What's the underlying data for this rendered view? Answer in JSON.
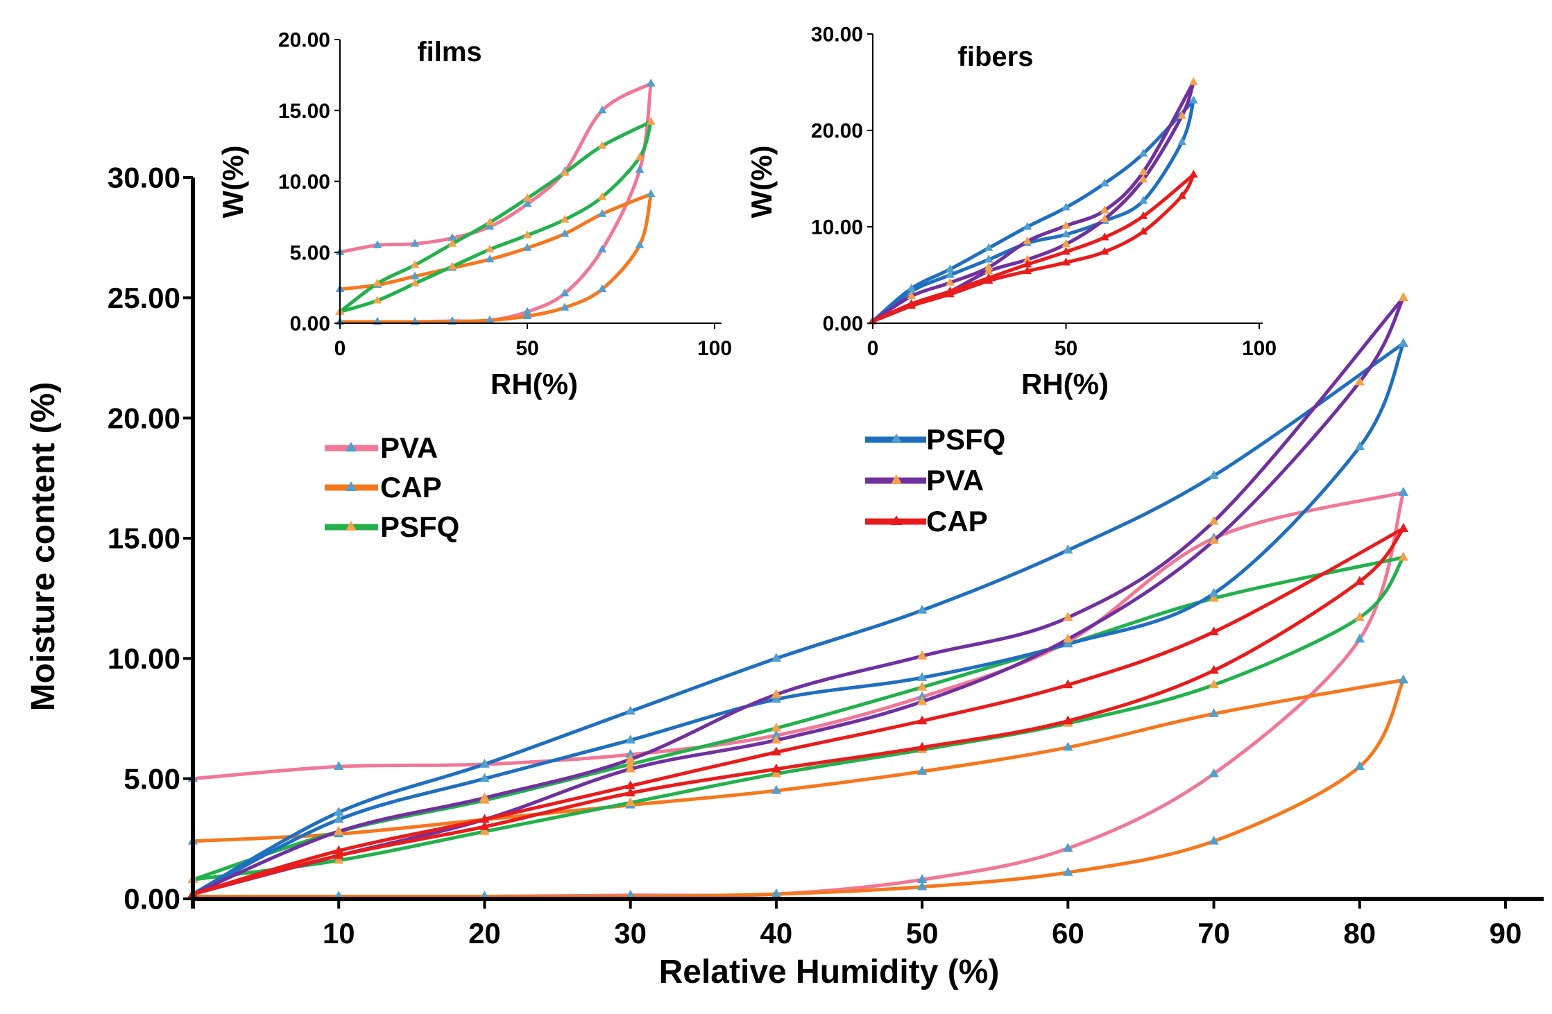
{
  "chart_data": [
    {
      "id": "main",
      "type": "line",
      "title": "",
      "xlabel": "Relative Humidity (%)",
      "ylabel": "Moisture content (%)",
      "xlim": [
        0,
        90
      ],
      "ylim": [
        0,
        30
      ],
      "xticks": [
        "10",
        "20",
        "30",
        "40",
        "50",
        "60",
        "70",
        "80",
        "90"
      ],
      "yticks": [
        "0.00",
        "5.00",
        "10.00",
        "15.00",
        "20.00",
        "25.00",
        "30.00"
      ],
      "grid": false,
      "legend": {
        "films": [
          "PVA",
          "CAP",
          "PSFQ"
        ],
        "fibers": [
          "PSFQ",
          "PVA",
          "CAP"
        ]
      },
      "series": [
        {
          "name": "PVA (film) sorption",
          "group": "films",
          "color": "#f07896",
          "x": [
            0,
            10,
            20,
            30,
            40,
            50,
            60,
            70,
            80,
            83
          ],
          "y": [
            0.1,
            0.1,
            0.1,
            0.15,
            0.2,
            0.8,
            2.1,
            5.2,
            10.8,
            16.9
          ]
        },
        {
          "name": "PVA (film) desorption",
          "group": "films",
          "color": "#f07896",
          "x": [
            83,
            70,
            60,
            50,
            40,
            30,
            20,
            10,
            0
          ],
          "y": [
            16.9,
            15.0,
            10.7,
            8.4,
            6.8,
            6.0,
            5.6,
            5.5,
            5.0
          ]
        },
        {
          "name": "CAP (film) sorption",
          "group": "films",
          "color": "#f5781e",
          "x": [
            0,
            10,
            20,
            30,
            40,
            50,
            60,
            70,
            80,
            83
          ],
          "y": [
            0.1,
            0.1,
            0.1,
            0.1,
            0.2,
            0.5,
            1.1,
            2.4,
            5.5,
            9.1
          ]
        },
        {
          "name": "CAP (film) desorption",
          "group": "films",
          "color": "#f5781e",
          "x": [
            83,
            70,
            60,
            50,
            40,
            30,
            20,
            10,
            0
          ],
          "y": [
            9.1,
            7.7,
            6.3,
            5.3,
            4.5,
            3.9,
            3.3,
            2.7,
            2.4
          ]
        },
        {
          "name": "PSFQ (film) sorption",
          "group": "films",
          "color": "#22b14c",
          "x": [
            0,
            10,
            20,
            30,
            40,
            50,
            60,
            70,
            80,
            83
          ],
          "y": [
            0.8,
            1.6,
            2.8,
            4.0,
            5.2,
            6.2,
            7.3,
            8.9,
            11.7,
            14.2
          ]
        },
        {
          "name": "PSFQ (film) desorption",
          "group": "films",
          "color": "#22b14c",
          "x": [
            83,
            70,
            60,
            50,
            40,
            30,
            20,
            10,
            0
          ],
          "y": [
            14.2,
            12.5,
            10.6,
            8.8,
            7.1,
            5.6,
            4.1,
            2.8,
            0.8
          ]
        },
        {
          "name": "PSFQ (fiber) sorption",
          "group": "fibers",
          "color": "#1f6fc0",
          "x": [
            0,
            10,
            20,
            30,
            40,
            50,
            60,
            70,
            80,
            83
          ],
          "y": [
            0.2,
            3.3,
            5.0,
            6.6,
            8.3,
            9.2,
            10.6,
            12.7,
            18.8,
            23.1
          ]
        },
        {
          "name": "PSFQ (fiber) desorption",
          "group": "fibers",
          "color": "#1f6fc0",
          "x": [
            83,
            70,
            60,
            50,
            40,
            30,
            20,
            10,
            0
          ],
          "y": [
            23.1,
            17.6,
            14.5,
            12.0,
            10.0,
            7.8,
            5.6,
            3.6,
            0.2
          ]
        },
        {
          "name": "PVA (fiber) sorption",
          "group": "fibers",
          "color": "#7030a0",
          "x": [
            0,
            10,
            20,
            30,
            40,
            50,
            60,
            70,
            80,
            83
          ],
          "y": [
            0.2,
            1.8,
            3.3,
            5.4,
            6.6,
            8.2,
            10.8,
            14.9,
            21.5,
            25.0
          ]
        },
        {
          "name": "PVA (fiber) desorption",
          "group": "fibers",
          "color": "#7030a0",
          "x": [
            83,
            70,
            60,
            50,
            40,
            30,
            20,
            10,
            0
          ],
          "y": [
            25.0,
            15.7,
            11.7,
            10.1,
            8.5,
            5.8,
            4.2,
            2.8,
            0.2
          ]
        },
        {
          "name": "CAP (fiber) sorption",
          "group": "fibers",
          "color": "#e81c1c",
          "x": [
            0,
            10,
            20,
            30,
            40,
            50,
            60,
            70,
            80,
            83
          ],
          "y": [
            0.2,
            1.8,
            3.0,
            4.4,
            5.4,
            6.3,
            7.4,
            9.5,
            13.2,
            15.4
          ]
        },
        {
          "name": "CAP (fiber) desorption",
          "group": "fibers",
          "color": "#e81c1c",
          "x": [
            83,
            70,
            60,
            50,
            40,
            30,
            20,
            10,
            0
          ],
          "y": [
            15.4,
            11.1,
            8.9,
            7.4,
            6.1,
            4.7,
            3.3,
            2.0,
            0.2
          ]
        }
      ]
    },
    {
      "id": "films",
      "type": "line",
      "title": "films",
      "xlabel": "RH(%)",
      "ylabel": "W(%)",
      "xlim": [
        0,
        100
      ],
      "ylim": [
        0,
        20
      ],
      "xticks": [
        "0",
        "50",
        "100"
      ],
      "yticks": [
        "0.00",
        "5.00",
        "10.00",
        "15.00",
        "20.00"
      ],
      "series_ref": [
        "PVA (film) sorption",
        "PVA (film) desorption",
        "CAP (film) sorption",
        "CAP (film) desorption",
        "PSFQ (film) sorption",
        "PSFQ (film) desorption"
      ]
    },
    {
      "id": "fibers",
      "type": "line",
      "title": "fibers",
      "xlabel": "RH(%)",
      "ylabel": "W(%)",
      "xlim": [
        0,
        100
      ],
      "ylim": [
        0,
        30
      ],
      "xticks": [
        "0",
        "50",
        "100"
      ],
      "yticks": [
        "0.00",
        "10.00",
        "20.00",
        "30.00"
      ],
      "series_ref": [
        "PSFQ (fiber) sorption",
        "PSFQ (fiber) desorption",
        "PVA (fiber) sorption",
        "PVA (fiber) desorption",
        "CAP (fiber) sorption",
        "CAP (fiber) desorption"
      ]
    }
  ],
  "colors": {
    "PVA_film": "#f07896",
    "CAP_film": "#f5781e",
    "PSFQ_film": "#22b14c",
    "PSFQ_fiber": "#1f6fc0",
    "PVA_fiber": "#7030a0",
    "CAP_fiber": "#e81c1c",
    "marker_film": "#4f9fd0",
    "marker_fiber": "#f5a04a"
  }
}
